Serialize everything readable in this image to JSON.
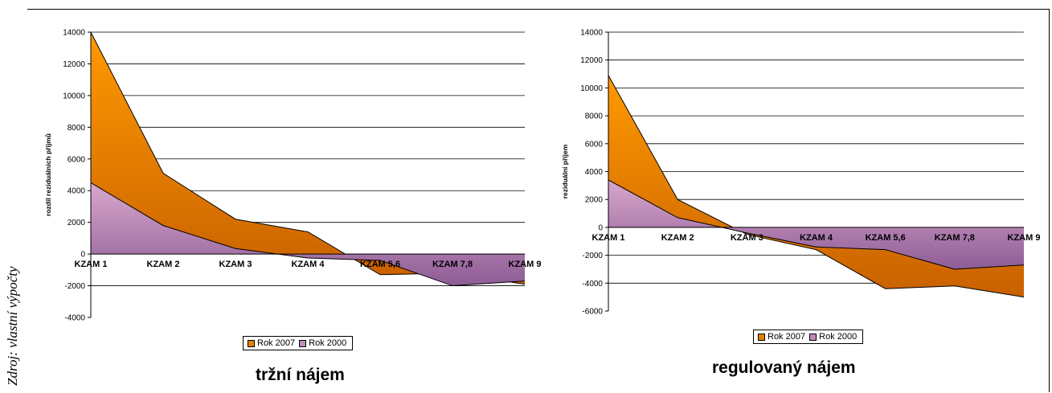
{
  "source_note": "Zdroj: vlastní výpočty",
  "colors": {
    "rok2007_top": "#ff9a00",
    "rok2007_bottom": "#c86000",
    "rok2000_top": "#d8a8cc",
    "rok2000_bottom": "#8e5c96",
    "grid": "#000000"
  },
  "chart_data": [
    {
      "type": "area",
      "title": "tržní nájem",
      "ylabel": "rozdíl reziduálních příjmů",
      "ylim": [
        -4000,
        14000
      ],
      "yticks": [
        -4000,
        -2000,
        0,
        2000,
        4000,
        6000,
        8000,
        10000,
        12000,
        14000
      ],
      "categories": [
        "KZAM 1",
        "KZAM 2",
        "KZAM 3",
        "KZAM 4",
        "KZAM 5,6",
        "KZAM 7,8",
        "KZAM 9"
      ],
      "legend": "bottom",
      "series": [
        {
          "name": "Rok 2007",
          "values": [
            14000,
            5100,
            2200,
            1400,
            -1300,
            -1200,
            -1900
          ]
        },
        {
          "name": "Rok 2000",
          "values": [
            4500,
            1800,
            350,
            -250,
            -400,
            -2000,
            -1700
          ]
        }
      ]
    },
    {
      "type": "area",
      "title": "regulovaný nájem",
      "ylabel": "reziduální příjem",
      "ylim": [
        -6000,
        14000
      ],
      "yticks": [
        -6000,
        -4000,
        -2000,
        0,
        2000,
        4000,
        6000,
        8000,
        10000,
        12000,
        14000
      ],
      "categories": [
        "KZAM 1",
        "KZAM 2",
        "KZAM 3",
        "KZAM 4",
        "KZAM 5,6",
        "KZAM 7,8",
        "KZAM 9"
      ],
      "legend": "bottom",
      "series": [
        {
          "name": "Rok 2007",
          "values": [
            10900,
            2000,
            -500,
            -1600,
            -4400,
            -4200,
            -5000
          ]
        },
        {
          "name": "Rok 2000",
          "values": [
            3400,
            700,
            -400,
            -1400,
            -1600,
            -3000,
            -2700
          ]
        }
      ]
    }
  ]
}
